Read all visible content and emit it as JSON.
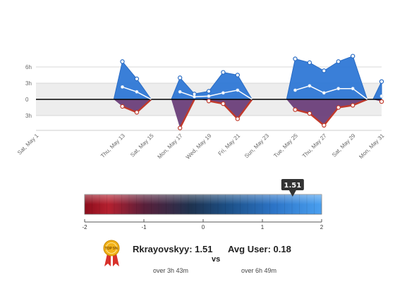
{
  "chart_data": [
    {
      "type": "area",
      "title": "",
      "xlabel": "",
      "ylabel": "",
      "y_tick_labels": [
        "6h",
        "3h",
        "0",
        "3h"
      ],
      "ylim": [
        -5.5,
        8.5
      ],
      "x_tick_labels": [
        "Sat, May 1",
        "Thu, May 13",
        "Sat, May 15",
        "Mon, May 17",
        "Wed, May 19",
        "Fri, May 21",
        "Sun, May 23",
        "Tue, May 25",
        "Thu, May 27",
        "Sat, May 29",
        "Mon, May 31"
      ],
      "x_tick_positions": [
        0,
        6,
        8,
        10,
        12,
        14,
        16,
        18,
        20,
        22,
        24
      ],
      "x_range": [
        0,
        24
      ],
      "grid": true,
      "series": [
        {
          "color": "#2f78d6",
          "points": [
            [
              6,
              7.0
            ],
            [
              7,
              3.8
            ],
            [
              8,
              0
            ],
            [
              10,
              4.0
            ],
            [
              11,
              1.0
            ],
            [
              12,
              1.5
            ],
            [
              13,
              5.0
            ],
            [
              14,
              4.5
            ],
            [
              15,
              0
            ],
            [
              18,
              7.5
            ],
            [
              19,
              6.8
            ],
            [
              20,
              5.3
            ],
            [
              21,
              7.0
            ],
            [
              22,
              8.0
            ],
            [
              23,
              0
            ],
            [
              24,
              3.3
            ]
          ]
        },
        {
          "color": "#6b3f7a",
          "points": [
            [
              6,
              -1.3
            ],
            [
              7,
              -2.4
            ],
            [
              8,
              0
            ],
            [
              10,
              -5.3
            ],
            [
              11,
              0
            ],
            [
              12,
              -0.3
            ],
            [
              13,
              -0.8
            ],
            [
              14,
              -3.6
            ],
            [
              15,
              0
            ],
            [
              18,
              -1.9
            ],
            [
              19,
              -2.6
            ],
            [
              20,
              -4.8
            ],
            [
              21,
              -1.5
            ],
            [
              22,
              -1.1
            ],
            [
              23,
              0
            ],
            [
              24,
              -0.4
            ]
          ]
        },
        {
          "color": "#ffffff",
          "points": [
            [
              6,
              2.3
            ],
            [
              7,
              1.4
            ],
            [
              8,
              0
            ],
            [
              10,
              1.4
            ],
            [
              11,
              0.5
            ],
            [
              12,
              0.6
            ],
            [
              13,
              1.2
            ],
            [
              14,
              1.7
            ],
            [
              15,
              0
            ],
            [
              18,
              1.7
            ],
            [
              19,
              2.5
            ],
            [
              20,
              1.2
            ],
            [
              21,
              2.0
            ],
            [
              22,
              2.0
            ],
            [
              23,
              0
            ],
            [
              24,
              0.6
            ]
          ]
        }
      ]
    },
    {
      "type": "bar",
      "title": "",
      "scale_ticks": [
        "-2",
        "-1",
        "0",
        "1",
        "2"
      ],
      "scale_range": [
        -2,
        2
      ],
      "marker_value": 1.51,
      "marker_label": "1.51"
    }
  ],
  "comparison": {
    "user_label": "Rkrayovskyy: 1.51",
    "user_time": "over 3h 43m",
    "vs_label": "vs",
    "avg_label": "Avg User: 0.18",
    "avg_time": "over 6h 49m",
    "medal_text": "TOP 5%"
  },
  "colors": {
    "positive": "#2f78d6",
    "negative": "#c0392b",
    "negative_fill": "#6b3f7a",
    "grid": "#d8d8d8",
    "band": "#ededed",
    "marker": "#333333",
    "medal": "#f2b21a",
    "ribbon": "#d8312b"
  }
}
